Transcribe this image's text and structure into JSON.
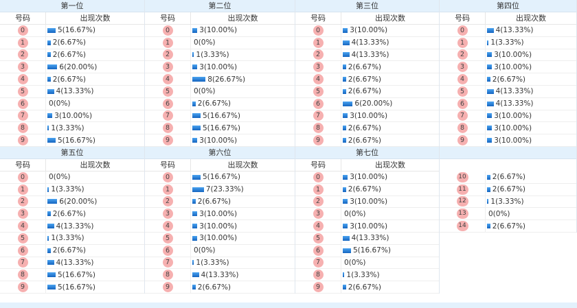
{
  "col_header_code": "号码",
  "col_header_count": "出现次数",
  "panels": [
    {
      "title": "第一位",
      "rows": [
        {
          "code": "0",
          "text": "5(16.67%)",
          "pct": 16.67
        },
        {
          "code": "1",
          "text": "2(6.67%)",
          "pct": 6.67
        },
        {
          "code": "2",
          "text": "2(6.67%)",
          "pct": 6.67
        },
        {
          "code": "3",
          "text": "6(20.00%)",
          "pct": 20.0
        },
        {
          "code": "4",
          "text": "2(6.67%)",
          "pct": 6.67
        },
        {
          "code": "5",
          "text": "4(13.33%)",
          "pct": 13.33
        },
        {
          "code": "6",
          "text": "0(0%)",
          "pct": 0
        },
        {
          "code": "7",
          "text": "3(10.00%)",
          "pct": 10.0
        },
        {
          "code": "8",
          "text": "1(3.33%)",
          "pct": 3.33
        },
        {
          "code": "9",
          "text": "5(16.67%)",
          "pct": 16.67
        }
      ]
    },
    {
      "title": "第二位",
      "rows": [
        {
          "code": "0",
          "text": "3(10.00%)",
          "pct": 10.0
        },
        {
          "code": "1",
          "text": "0(0%)",
          "pct": 0
        },
        {
          "code": "2",
          "text": "1(3.33%)",
          "pct": 3.33
        },
        {
          "code": "3",
          "text": "3(10.00%)",
          "pct": 10.0
        },
        {
          "code": "4",
          "text": "8(26.67%)",
          "pct": 26.67
        },
        {
          "code": "5",
          "text": "0(0%)",
          "pct": 0
        },
        {
          "code": "6",
          "text": "2(6.67%)",
          "pct": 6.67
        },
        {
          "code": "7",
          "text": "5(16.67%)",
          "pct": 16.67
        },
        {
          "code": "8",
          "text": "5(16.67%)",
          "pct": 16.67
        },
        {
          "code": "9",
          "text": "3(10.00%)",
          "pct": 10.0
        }
      ]
    },
    {
      "title": "第三位",
      "rows": [
        {
          "code": "0",
          "text": "3(10.00%)",
          "pct": 10.0
        },
        {
          "code": "1",
          "text": "4(13.33%)",
          "pct": 13.33
        },
        {
          "code": "2",
          "text": "4(13.33%)",
          "pct": 13.33
        },
        {
          "code": "3",
          "text": "2(6.67%)",
          "pct": 6.67
        },
        {
          "code": "4",
          "text": "2(6.67%)",
          "pct": 6.67
        },
        {
          "code": "5",
          "text": "2(6.67%)",
          "pct": 6.67
        },
        {
          "code": "6",
          "text": "6(20.00%)",
          "pct": 20.0
        },
        {
          "code": "7",
          "text": "3(10.00%)",
          "pct": 10.0
        },
        {
          "code": "8",
          "text": "2(6.67%)",
          "pct": 6.67
        },
        {
          "code": "9",
          "text": "2(6.67%)",
          "pct": 6.67
        }
      ]
    },
    {
      "title": "第四位",
      "rows": [
        {
          "code": "0",
          "text": "4(13.33%)",
          "pct": 13.33
        },
        {
          "code": "1",
          "text": "1(3.33%)",
          "pct": 3.33
        },
        {
          "code": "2",
          "text": "3(10.00%)",
          "pct": 10.0
        },
        {
          "code": "3",
          "text": "3(10.00%)",
          "pct": 10.0
        },
        {
          "code": "4",
          "text": "2(6.67%)",
          "pct": 6.67
        },
        {
          "code": "5",
          "text": "4(13.33%)",
          "pct": 13.33
        },
        {
          "code": "6",
          "text": "4(13.33%)",
          "pct": 13.33
        },
        {
          "code": "7",
          "text": "3(10.00%)",
          "pct": 10.0
        },
        {
          "code": "8",
          "text": "3(10.00%)",
          "pct": 10.0
        },
        {
          "code": "9",
          "text": "3(10.00%)",
          "pct": 10.0
        }
      ]
    },
    {
      "title": "第五位",
      "rows": [
        {
          "code": "0",
          "text": "0(0%)",
          "pct": 0
        },
        {
          "code": "1",
          "text": "1(3.33%)",
          "pct": 3.33
        },
        {
          "code": "2",
          "text": "6(20.00%)",
          "pct": 20.0
        },
        {
          "code": "3",
          "text": "2(6.67%)",
          "pct": 6.67
        },
        {
          "code": "4",
          "text": "4(13.33%)",
          "pct": 13.33
        },
        {
          "code": "5",
          "text": "1(3.33%)",
          "pct": 3.33
        },
        {
          "code": "6",
          "text": "2(6.67%)",
          "pct": 6.67
        },
        {
          "code": "7",
          "text": "4(13.33%)",
          "pct": 13.33
        },
        {
          "code": "8",
          "text": "5(16.67%)",
          "pct": 16.67
        },
        {
          "code": "9",
          "text": "5(16.67%)",
          "pct": 16.67
        }
      ]
    },
    {
      "title": "第六位",
      "rows": [
        {
          "code": "0",
          "text": "5(16.67%)",
          "pct": 16.67
        },
        {
          "code": "1",
          "text": "7(23.33%)",
          "pct": 23.33
        },
        {
          "code": "2",
          "text": "2(6.67%)",
          "pct": 6.67
        },
        {
          "code": "3",
          "text": "3(10.00%)",
          "pct": 10.0
        },
        {
          "code": "4",
          "text": "3(10.00%)",
          "pct": 10.0
        },
        {
          "code": "5",
          "text": "3(10.00%)",
          "pct": 10.0
        },
        {
          "code": "6",
          "text": "0(0%)",
          "pct": 0
        },
        {
          "code": "7",
          "text": "1(3.33%)",
          "pct": 3.33
        },
        {
          "code": "8",
          "text": "4(13.33%)",
          "pct": 13.33
        },
        {
          "code": "9",
          "text": "2(6.67%)",
          "pct": 6.67
        }
      ]
    },
    {
      "title": "第七位",
      "rows": [
        {
          "code": "0",
          "text": "3(10.00%)",
          "pct": 10.0
        },
        {
          "code": "1",
          "text": "2(6.67%)",
          "pct": 6.67
        },
        {
          "code": "2",
          "text": "3(10.00%)",
          "pct": 10.0
        },
        {
          "code": "3",
          "text": "0(0%)",
          "pct": 0
        },
        {
          "code": "4",
          "text": "3(10.00%)",
          "pct": 10.0
        },
        {
          "code": "5",
          "text": "4(13.33%)",
          "pct": 13.33
        },
        {
          "code": "6",
          "text": "5(16.67%)",
          "pct": 16.67
        },
        {
          "code": "7",
          "text": "0(0%)",
          "pct": 0
        },
        {
          "code": "8",
          "text": "1(3.33%)",
          "pct": 3.33
        },
        {
          "code": "9",
          "text": "2(6.67%)",
          "pct": 6.67
        }
      ]
    },
    {
      "title": "",
      "rows": [
        {
          "code": "10",
          "text": "2(6.67%)",
          "pct": 6.67
        },
        {
          "code": "11",
          "text": "2(6.67%)",
          "pct": 6.67
        },
        {
          "code": "12",
          "text": "1(3.33%)",
          "pct": 3.33
        },
        {
          "code": "13",
          "text": "0(0%)",
          "pct": 0
        },
        {
          "code": "14",
          "text": "2(6.67%)",
          "pct": 6.67
        }
      ]
    }
  ]
}
